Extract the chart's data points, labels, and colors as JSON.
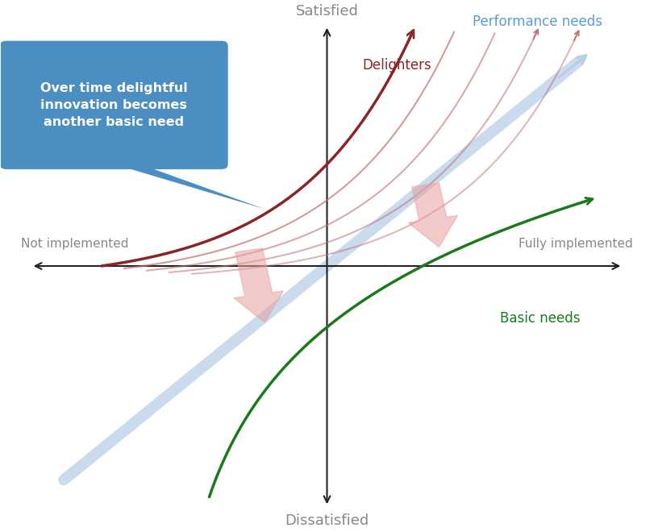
{
  "satisfied_label": "Satisfied",
  "dissatisfied_label": "Dissatisfied",
  "not_implemented_label": "Not implemented",
  "fully_implemented_label": "Fully implemented",
  "performance_needs_label": "Performance needs",
  "delighters_label": "Delighters",
  "basic_needs_label": "Basic needs",
  "callout_text": "Over time delightful\ninnovation becomes\nanother basic need",
  "bg_color": "#ffffff",
  "axis_color": "#222222",
  "performance_color": "#b8cfe8",
  "delighters_color": "#8b2525",
  "basic_needs_color": "#1a7a1a",
  "shifted_curves_color": "#c07070",
  "arrow_color": "#e8a0a0",
  "callout_bg": "#4a8ec2",
  "callout_text_color": "#ffffff",
  "axis_label_color": "#888888",
  "perf_label_color": "#5b9bd5"
}
